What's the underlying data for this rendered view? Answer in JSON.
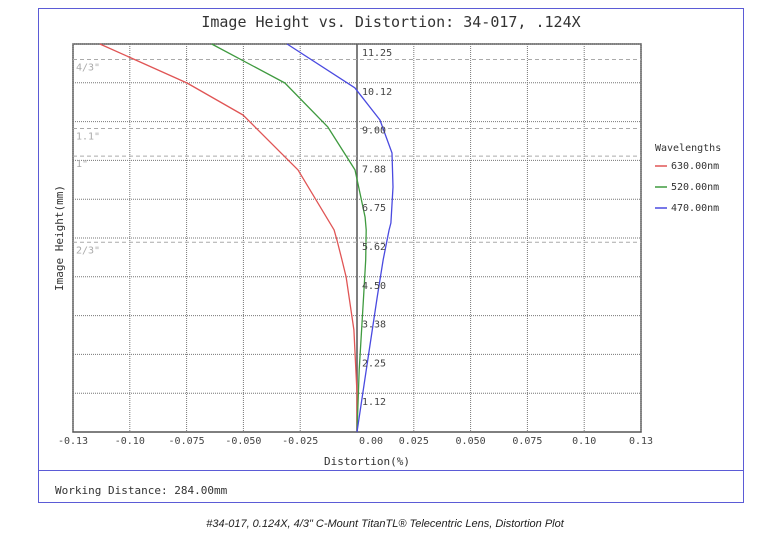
{
  "chart_data": {
    "type": "line",
    "title": "Image Height vs. Distortion: 34-017, .124X",
    "xlabel": "Distortion(%)",
    "ylabel": "Image Height(mm)",
    "xlim": [
      -0.13,
      0.13
    ],
    "ylim": [
      0,
      11.25
    ],
    "grid": true,
    "x_tick_labels": [
      "-0.13",
      "-0.10",
      "-0.075",
      "-0.050",
      "-0.025",
      "0.00",
      "0.025",
      "0.050",
      "0.075",
      "0.10",
      "0.13"
    ],
    "y_tick_values": [
      1.125,
      2.25,
      3.375,
      4.5,
      5.625,
      6.75,
      7.875,
      9.0,
      10.125,
      11.25
    ],
    "y_tick_labels": [
      "1.12",
      "2.25",
      "3.38",
      "4.50",
      "5.62",
      "6.75",
      "7.88",
      "9.00",
      "10.12",
      "11.25"
    ],
    "sensor_lines": [
      {
        "label": "4/3\"",
        "height": 10.8
      },
      {
        "label": "1.1\"",
        "height": 8.8
      },
      {
        "label": "1\"",
        "height": 8.0
      },
      {
        "label": "2/3\"",
        "height": 5.5
      }
    ],
    "legend_title": "Wavelengths",
    "legend_position": "right",
    "series": [
      {
        "name": "630.00nm",
        "color": "#e05555",
        "points": [
          [
            0,
            0
          ],
          [
            0,
            1.13
          ],
          [
            -0.0014,
            2.96
          ],
          [
            -0.005,
            4.5
          ],
          [
            -0.0069,
            5.0
          ],
          [
            -0.0092,
            5.57
          ],
          [
            -0.0105,
            5.86
          ],
          [
            -0.027,
            7.6
          ],
          [
            -0.0522,
            9.19
          ],
          [
            -0.0778,
            10.12
          ],
          [
            -0.1177,
            11.25
          ]
        ]
      },
      {
        "name": "520.00nm",
        "color": "#3f9a3f",
        "points": [
          [
            0,
            0
          ],
          [
            0.001,
            1.8
          ],
          [
            0.003,
            3.93
          ],
          [
            0.004,
            4.99
          ],
          [
            0.0042,
            5.86
          ],
          [
            0.0037,
            6.23
          ],
          [
            -0.0009,
            7.6
          ],
          [
            -0.0133,
            8.84
          ],
          [
            -0.033,
            10.12
          ],
          [
            -0.0665,
            11.25
          ]
        ]
      },
      {
        "name": "470.00nm",
        "color": "#4a4ae0",
        "points": [
          [
            0,
            0
          ],
          [
            0.0047,
            2.0
          ],
          [
            0.0093,
            3.93
          ],
          [
            0.012,
            5.0
          ],
          [
            0.0147,
            5.86
          ],
          [
            0.0155,
            6.06
          ],
          [
            0.0165,
            7.1
          ],
          [
            0.016,
            8.09
          ],
          [
            0.0105,
            9.05
          ],
          [
            -0.001,
            9.98
          ],
          [
            -0.032,
            11.25
          ]
        ]
      }
    ]
  },
  "footer": {
    "working_distance": "Working Distance: 284.00mm"
  },
  "caption": "#34-017, 0.124X, 4/3\" C-Mount TitanTL® Telecentric Lens, Distortion Plot"
}
